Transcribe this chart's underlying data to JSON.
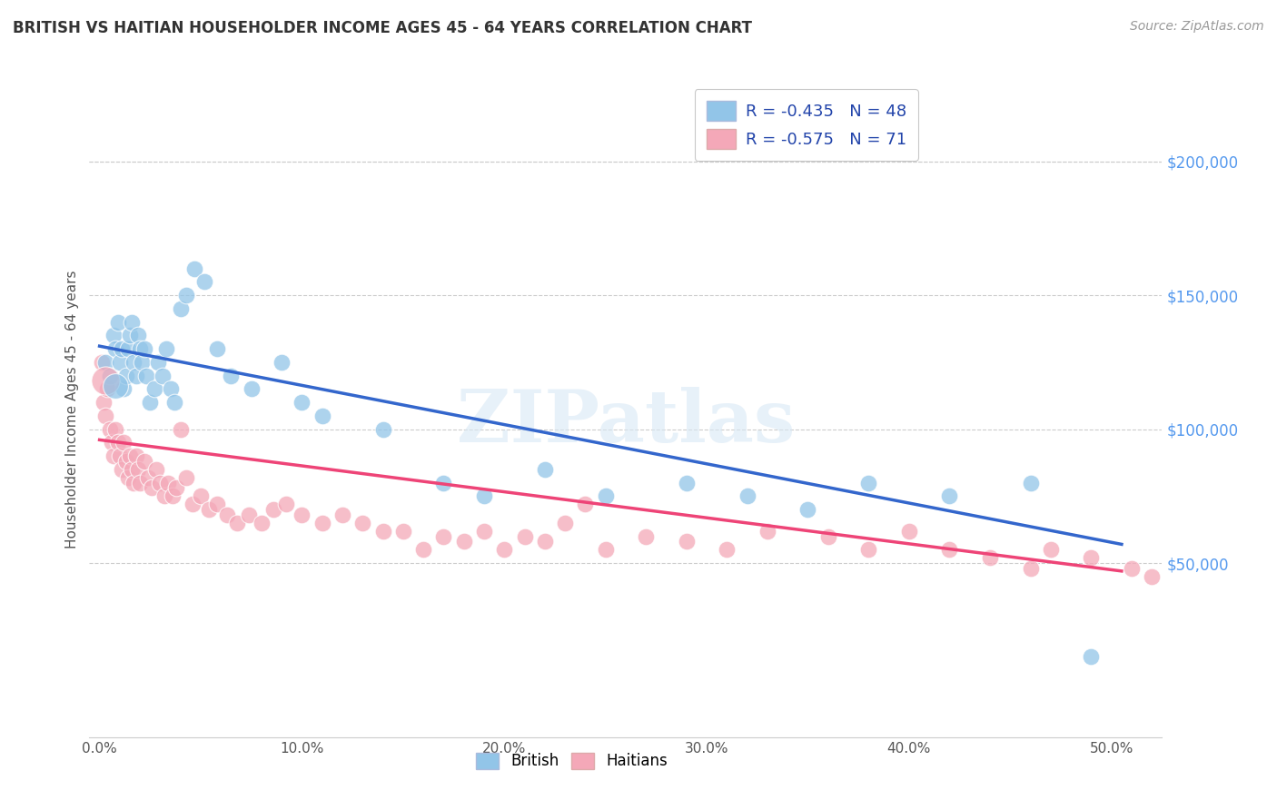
{
  "title": "BRITISH VS HAITIAN HOUSEHOLDER INCOME AGES 45 - 64 YEARS CORRELATION CHART",
  "source": "Source: ZipAtlas.com",
  "xlabel_ticks": [
    "0.0%",
    "10.0%",
    "20.0%",
    "30.0%",
    "40.0%",
    "50.0%"
  ],
  "xlabel_vals": [
    0.0,
    0.1,
    0.2,
    0.3,
    0.4,
    0.5
  ],
  "ylabel": "Householder Income Ages 45 - 64 years",
  "ylabel_ticks": [
    "$50,000",
    "$100,000",
    "$150,000",
    "$200,000"
  ],
  "ylabel_vals": [
    50000,
    100000,
    150000,
    200000
  ],
  "xlim": [
    -0.005,
    0.525
  ],
  "ylim": [
    -15000,
    230000
  ],
  "watermark": "ZIPatlas",
  "legend_british_R": "-0.435",
  "legend_british_N": "48",
  "legend_haitian_R": "-0.575",
  "legend_haitian_N": "71",
  "british_color": "#92C5E8",
  "haitian_color": "#F4A8B8",
  "british_line_color": "#3366CC",
  "haitian_line_color": "#EE4477",
  "grid_color": "#CCCCCC",
  "title_color": "#333333",
  "right_tick_color": "#5599EE",
  "british_line_x0": 0.0,
  "british_line_x1": 0.505,
  "british_line_y0": 131000,
  "british_line_y1": 57000,
  "haitian_line_x0": 0.0,
  "haitian_line_x1": 0.505,
  "haitian_line_y0": 96000,
  "haitian_line_y1": 47000,
  "british_scatter_x": [
    0.003,
    0.005,
    0.007,
    0.008,
    0.009,
    0.01,
    0.011,
    0.012,
    0.013,
    0.014,
    0.015,
    0.016,
    0.017,
    0.018,
    0.019,
    0.02,
    0.021,
    0.022,
    0.023,
    0.025,
    0.027,
    0.029,
    0.031,
    0.033,
    0.035,
    0.037,
    0.04,
    0.043,
    0.047,
    0.052,
    0.058,
    0.065,
    0.075,
    0.09,
    0.1,
    0.11,
    0.14,
    0.17,
    0.19,
    0.22,
    0.25,
    0.29,
    0.32,
    0.35,
    0.38,
    0.42,
    0.46,
    0.49
  ],
  "british_scatter_y": [
    125000,
    120000,
    135000,
    130000,
    140000,
    125000,
    130000,
    115000,
    120000,
    130000,
    135000,
    140000,
    125000,
    120000,
    135000,
    130000,
    125000,
    130000,
    120000,
    110000,
    115000,
    125000,
    120000,
    130000,
    115000,
    110000,
    145000,
    150000,
    160000,
    155000,
    130000,
    120000,
    115000,
    125000,
    110000,
    105000,
    100000,
    80000,
    75000,
    85000,
    75000,
    80000,
    75000,
    70000,
    80000,
    75000,
    80000,
    15000
  ],
  "haitian_scatter_x": [
    0.001,
    0.002,
    0.003,
    0.004,
    0.005,
    0.006,
    0.007,
    0.008,
    0.009,
    0.01,
    0.011,
    0.012,
    0.013,
    0.014,
    0.015,
    0.016,
    0.017,
    0.018,
    0.019,
    0.02,
    0.022,
    0.024,
    0.026,
    0.028,
    0.03,
    0.032,
    0.034,
    0.036,
    0.038,
    0.04,
    0.043,
    0.046,
    0.05,
    0.054,
    0.058,
    0.063,
    0.068,
    0.074,
    0.08,
    0.086,
    0.092,
    0.1,
    0.11,
    0.12,
    0.13,
    0.14,
    0.15,
    0.16,
    0.17,
    0.18,
    0.19,
    0.2,
    0.21,
    0.22,
    0.23,
    0.24,
    0.25,
    0.27,
    0.29,
    0.31,
    0.33,
    0.36,
    0.38,
    0.4,
    0.42,
    0.44,
    0.46,
    0.47,
    0.49,
    0.51,
    0.52
  ],
  "haitian_scatter_y": [
    125000,
    110000,
    105000,
    115000,
    100000,
    95000,
    90000,
    100000,
    95000,
    90000,
    85000,
    95000,
    88000,
    82000,
    90000,
    85000,
    80000,
    90000,
    85000,
    80000,
    88000,
    82000,
    78000,
    85000,
    80000,
    75000,
    80000,
    75000,
    78000,
    100000,
    82000,
    72000,
    75000,
    70000,
    72000,
    68000,
    65000,
    68000,
    65000,
    70000,
    72000,
    68000,
    65000,
    68000,
    65000,
    62000,
    62000,
    55000,
    60000,
    58000,
    62000,
    55000,
    60000,
    58000,
    65000,
    72000,
    55000,
    60000,
    58000,
    55000,
    62000,
    60000,
    55000,
    62000,
    55000,
    52000,
    48000,
    55000,
    52000,
    48000,
    45000
  ]
}
